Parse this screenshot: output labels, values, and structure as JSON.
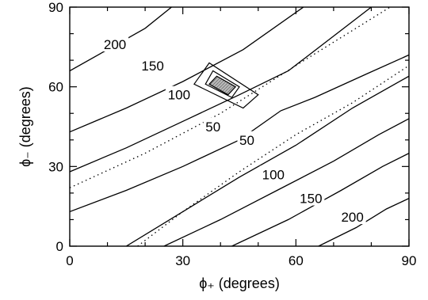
{
  "chart_data": {
    "type": "contour",
    "xlabel": "ϕ₊ (degrees)",
    "ylabel": "ϕ₋ (degrees)",
    "xlim": [
      0,
      90
    ],
    "ylim": [
      0,
      90
    ],
    "xticks": [
      0,
      30,
      60,
      90
    ],
    "yticks": [
      0,
      30,
      60,
      90
    ],
    "grid": false,
    "contours": [
      {
        "level": 200,
        "points": [
          [
            0,
            66
          ],
          [
            10,
            74
          ],
          [
            20,
            82
          ],
          [
            27,
            90
          ]
        ]
      },
      {
        "level": 150,
        "points": [
          [
            0,
            43
          ],
          [
            15,
            52
          ],
          [
            30,
            62
          ],
          [
            46,
            74
          ],
          [
            62,
            90
          ]
        ]
      },
      {
        "level": 100,
        "points": [
          [
            0,
            28
          ],
          [
            15,
            37
          ],
          [
            30,
            47
          ],
          [
            45,
            57
          ],
          [
            58,
            66
          ],
          [
            80,
            90
          ]
        ]
      },
      {
        "level": 50,
        "points": [
          [
            0,
            13
          ],
          [
            15,
            21
          ],
          [
            30,
            30
          ],
          [
            45,
            40
          ],
          [
            56,
            51
          ],
          [
            65,
            56
          ],
          [
            79,
            65
          ],
          [
            90,
            72
          ]
        ]
      },
      {
        "level": 50,
        "points": [
          [
            15,
            0
          ],
          [
            30,
            13
          ],
          [
            45,
            26
          ],
          [
            60,
            38
          ],
          [
            75,
            52
          ],
          [
            90,
            64
          ]
        ]
      },
      {
        "level": 100,
        "points": [
          [
            25,
            0
          ],
          [
            40,
            10
          ],
          [
            55,
            21
          ],
          [
            70,
            32
          ],
          [
            82,
            42
          ],
          [
            90,
            48
          ]
        ]
      },
      {
        "level": 150,
        "points": [
          [
            43,
            0
          ],
          [
            58,
            10
          ],
          [
            72,
            21
          ],
          [
            83,
            30
          ],
          [
            90,
            35
          ]
        ]
      },
      {
        "level": 200,
        "points": [
          [
            66,
            0
          ],
          [
            76,
            7
          ],
          [
            84,
            14
          ],
          [
            90,
            18
          ]
        ]
      }
    ],
    "dotted_lines": [
      {
        "points": [
          [
            0,
            22
          ],
          [
            20,
            35
          ],
          [
            40,
            50
          ],
          [
            60,
            68
          ],
          [
            85,
            90
          ]
        ]
      },
      {
        "points": [
          [
            18,
            0
          ],
          [
            30,
            13
          ],
          [
            45,
            28
          ],
          [
            60,
            42
          ],
          [
            75,
            54
          ],
          [
            90,
            68
          ]
        ]
      }
    ],
    "regions": [
      {
        "style": "outline",
        "points": [
          [
            33,
            61
          ],
          [
            37,
            69
          ],
          [
            50,
            57
          ],
          [
            46,
            52
          ]
        ]
      },
      {
        "style": "outline",
        "points": [
          [
            36,
            61
          ],
          [
            38,
            66
          ],
          [
            45,
            60
          ],
          [
            43,
            56
          ]
        ]
      },
      {
        "style": "filled",
        "points": [
          [
            37,
            61
          ],
          [
            39,
            64
          ],
          [
            44,
            60
          ],
          [
            42,
            57
          ]
        ]
      }
    ],
    "contour_labels": [
      {
        "text": "200",
        "x": 12,
        "y": 76
      },
      {
        "text": "150",
        "x": 22,
        "y": 68
      },
      {
        "text": "100",
        "x": 29,
        "y": 57
      },
      {
        "text": "50",
        "x": 38,
        "y": 45
      },
      {
        "text": "50",
        "x": 47,
        "y": 40
      },
      {
        "text": "100",
        "x": 54,
        "y": 27
      },
      {
        "text": "150",
        "x": 64,
        "y": 18
      },
      {
        "text": "200",
        "x": 75,
        "y": 11
      }
    ]
  }
}
